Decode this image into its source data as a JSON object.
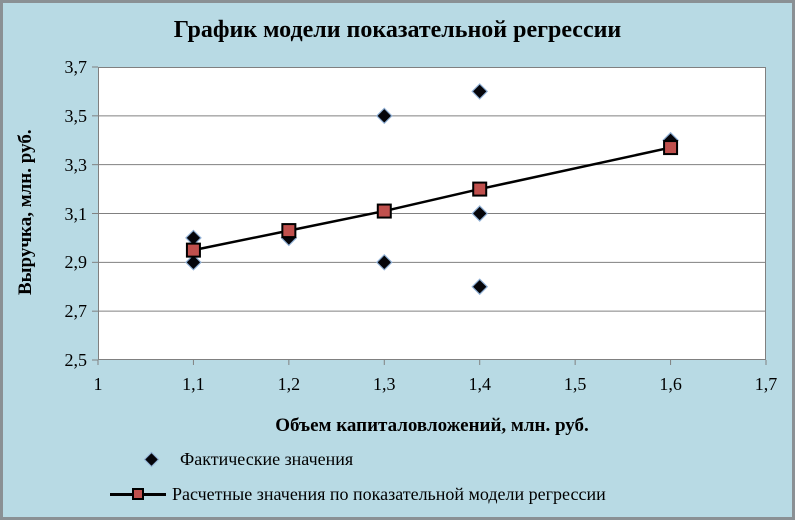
{
  "chart": {
    "title": "График модели показательной регрессии",
    "x_axis_title": "Объем капиталовложений, млн. руб.",
    "y_axis_title": "Выручка, млн. руб.",
    "legend": [
      {
        "label": "Фактические значения",
        "marker": "black-diamond-icon"
      },
      {
        "label": "Расчетные значения по показательной модели регрессии",
        "marker": "line-with-red-square-icon"
      }
    ],
    "colors": {
      "background": "#B8DAE4",
      "plot_background": "#FFFFFF",
      "gridline": "#808080",
      "border": "#8A9094",
      "actual_marker_fill": "#05050A",
      "actual_marker_outline": "#8FAFD4",
      "predicted_marker_fill": "#C0504D",
      "predicted_marker_border": "#000000",
      "line": "#000000",
      "text": "#000000"
    }
  },
  "chart_data": {
    "type": "scatter",
    "title": "График модели показательной регрессии",
    "xlabel": "Объем капиталовложений, млн. руб.",
    "ylabel": "Выручка, млн. руб.",
    "xlim": [
      1.0,
      1.7
    ],
    "ylim": [
      2.5,
      3.7
    ],
    "x_ticks": [
      1.0,
      1.1,
      1.2,
      1.3,
      1.4,
      1.5,
      1.6,
      1.7
    ],
    "x_tick_labels": [
      "1",
      "1,1",
      "1,2",
      "1,3",
      "1,4",
      "1,5",
      "1,6",
      "1,7"
    ],
    "y_ticks": [
      2.5,
      2.7,
      2.9,
      3.1,
      3.3,
      3.5,
      3.7
    ],
    "y_tick_labels": [
      "2,5",
      "2,7",
      "2,9",
      "3,1",
      "3,3",
      "3,5",
      "3,7"
    ],
    "grid": "horizontal",
    "legend_position": "bottom-left",
    "series": [
      {
        "name": "Фактические значения",
        "type": "scatter",
        "marker": "diamond",
        "points": [
          [
            1.1,
            3.0
          ],
          [
            1.1,
            2.9
          ],
          [
            1.2,
            3.0
          ],
          [
            1.3,
            3.5
          ],
          [
            1.3,
            2.9
          ],
          [
            1.4,
            3.6
          ],
          [
            1.4,
            3.1
          ],
          [
            1.4,
            2.8
          ],
          [
            1.6,
            3.4
          ]
        ]
      },
      {
        "name": "Расчетные значения по показательной модели регрессии",
        "type": "line",
        "marker": "square",
        "points": [
          [
            1.1,
            2.95
          ],
          [
            1.2,
            3.03
          ],
          [
            1.3,
            3.11
          ],
          [
            1.4,
            3.2
          ],
          [
            1.6,
            3.37
          ]
        ]
      }
    ]
  }
}
